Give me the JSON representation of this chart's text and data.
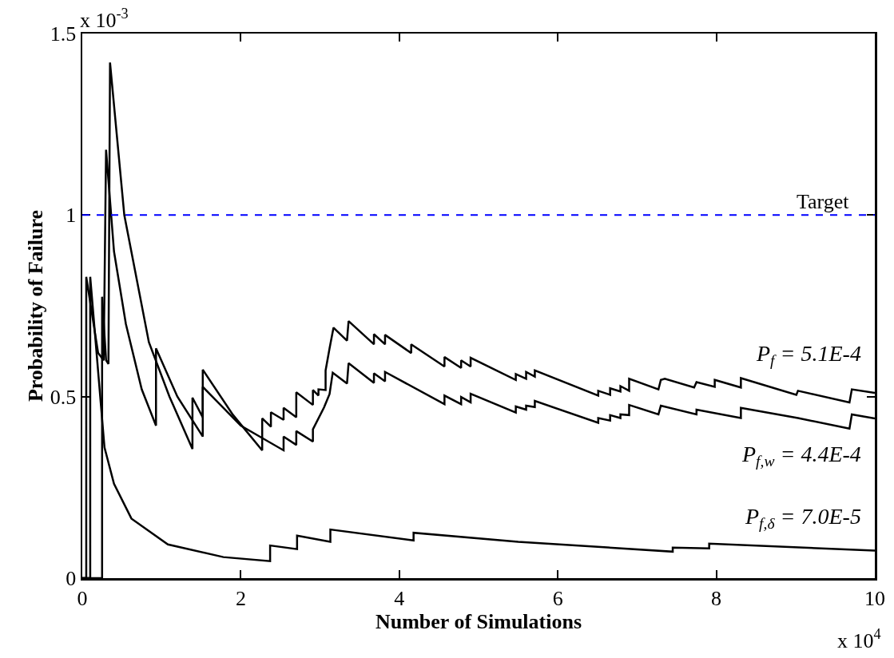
{
  "chart_data": {
    "type": "line",
    "xlabel": "Number of Simulations",
    "ylabel": "Probability of Failure",
    "xlim": [
      0,
      10
    ],
    "ylim": [
      0,
      1.5
    ],
    "xticks": [
      0,
      2,
      4,
      6,
      8,
      10
    ],
    "yticks": [
      0,
      0.5,
      1,
      1.5
    ],
    "grid": false,
    "marker": "none",
    "line_style": "solid",
    "series": [
      {
        "color": "#000000",
        "x": [
          0,
          0.05,
          0.05,
          0.2,
          0.27,
          0.3,
          0.4,
          0.55,
          0.75,
          0.93,
          0.93,
          1.2,
          1.52,
          1.52,
          1.9,
          2.27,
          2.27,
          2.38,
          2.38,
          2.54,
          2.54,
          2.7,
          2.7,
          2.91,
          2.91,
          2.98,
          2.98,
          3.07,
          3.07,
          3.12,
          3.17,
          3.34,
          3.36,
          3.68,
          3.68,
          3.82,
          3.82,
          4.15,
          4.15,
          4.57,
          4.57,
          4.78,
          4.78,
          4.9,
          4.9,
          5.47,
          5.47,
          5.6,
          5.6,
          5.71,
          5.71,
          6.51,
          6.51,
          6.66,
          6.66,
          6.79,
          6.79,
          6.9,
          6.9,
          7.27,
          7.3,
          7.35,
          7.72,
          7.75,
          7.98,
          7.98,
          8.31,
          8.31,
          9.01,
          9.03,
          9.68,
          9.71,
          10
        ],
        "values": [
          0,
          0,
          0.83,
          0.62,
          0.6,
          1.18,
          0.9,
          0.7,
          0.52,
          0.42,
          0.633,
          0.5,
          0.39,
          0.574,
          0.45,
          0.352,
          0.44,
          0.417,
          0.457,
          0.436,
          0.469,
          0.443,
          0.512,
          0.477,
          0.518,
          0.503,
          0.52,
          0.518,
          0.572,
          0.633,
          0.69,
          0.654,
          0.708,
          0.644,
          0.672,
          0.644,
          0.67,
          0.62,
          0.644,
          0.583,
          0.609,
          0.579,
          0.6,
          0.583,
          0.607,
          0.546,
          0.562,
          0.549,
          0.568,
          0.555,
          0.572,
          0.503,
          0.516,
          0.505,
          0.523,
          0.514,
          0.529,
          0.516,
          0.549,
          0.52,
          0.546,
          0.549,
          0.525,
          0.54,
          0.527,
          0.546,
          0.525,
          0.551,
          0.505,
          0.516,
          0.484,
          0.52,
          0.51
        ]
      },
      {
        "color": "#000000",
        "x": [
          0,
          0.25,
          0.25,
          0.3,
          0.33,
          0.35,
          0.53,
          0.84,
          1.1,
          1.39,
          1.39,
          1.52,
          1.52,
          2.0,
          2.54,
          2.54,
          2.7,
          2.7,
          2.91,
          2.91,
          3.05,
          3.12,
          3.16,
          3.34,
          3.36,
          3.68,
          3.68,
          3.82,
          3.82,
          4.57,
          4.57,
          4.78,
          4.78,
          4.9,
          4.9,
          5.47,
          5.47,
          5.6,
          5.6,
          5.71,
          5.71,
          6.51,
          6.51,
          6.66,
          6.66,
          6.79,
          6.79,
          6.9,
          6.9,
          7.27,
          7.3,
          7.75,
          7.75,
          8.31,
          8.31,
          9.03,
          9.68,
          9.71,
          10
        ],
        "values": [
          0,
          0,
          0.775,
          0.6,
          0.59,
          1.42,
          1.0,
          0.65,
          0.5,
          0.356,
          0.497,
          0.443,
          0.527,
          0.42,
          0.352,
          0.39,
          0.367,
          0.405,
          0.376,
          0.41,
          0.47,
          0.507,
          0.566,
          0.536,
          0.592,
          0.538,
          0.564,
          0.542,
          0.568,
          0.479,
          0.503,
          0.479,
          0.499,
          0.484,
          0.508,
          0.456,
          0.473,
          0.464,
          0.475,
          0.471,
          0.488,
          0.428,
          0.441,
          0.434,
          0.449,
          0.441,
          0.451,
          0.449,
          0.477,
          0.451,
          0.475,
          0.451,
          0.464,
          0.441,
          0.469,
          0.441,
          0.412,
          0.451,
          0.44
        ]
      },
      {
        "color": "#000000",
        "x": [
          0,
          0.1,
          0.1,
          0.28,
          0.4,
          0.62,
          1.08,
          1.78,
          2.37,
          2.37,
          2.71,
          2.71,
          3.13,
          3.13,
          4.18,
          4.18,
          5.5,
          7.45,
          7.45,
          7.91,
          7.91,
          10
        ],
        "values": [
          0,
          0,
          0.83,
          0.36,
          0.26,
          0.164,
          0.093,
          0.058,
          0.047,
          0.09,
          0.08,
          0.117,
          0.1,
          0.134,
          0.104,
          0.125,
          0.1,
          0.073,
          0.084,
          0.082,
          0.095,
          0.076
        ]
      }
    ],
    "ref_lines": [
      {
        "axis": "y",
        "value": 1,
        "label": "Target",
        "color": "#0000ff",
        "line_style": "dashed"
      }
    ],
    "annotations": [
      "x 10$^{-3}$",
      "x 10$^{4}$",
      "P$_{f}$ = 5.1E-4",
      "P$_{f,w}$ = 4.4E-4",
      "P$_{f,δ}$ = 7.0E-5"
    ]
  }
}
